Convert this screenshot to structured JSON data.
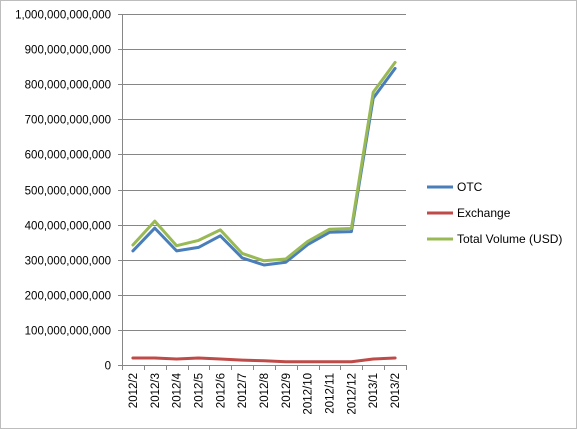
{
  "chart_data": {
    "type": "line",
    "title": "",
    "xlabel": "",
    "ylabel": "",
    "categories": [
      "2012/2",
      "2012/3",
      "2012/4",
      "2012/5",
      "2012/6",
      "2012/7",
      "2012/8",
      "2012/9",
      "2012/10",
      "2012/11",
      "2012/12",
      "2013/1",
      "2013/2"
    ],
    "ylim": [
      0,
      1000000000000
    ],
    "y_ticks": [
      0,
      100000000000,
      200000000000,
      300000000000,
      400000000000,
      500000000000,
      600000000000,
      700000000000,
      800000000000,
      900000000000,
      1000000000000
    ],
    "y_tick_labels": [
      "0",
      "100,000,000,000",
      "200,000,000,000",
      "300,000,000,000",
      "400,000,000,000",
      "500,000,000,000",
      "600,000,000,000",
      "700,000,000,000",
      "800,000,000,000",
      "900,000,000,000",
      "1,000,000,000,000"
    ],
    "grid": true,
    "legend_position": "right",
    "series": [
      {
        "name": "OTC",
        "color": "#4a7ebb",
        "values": [
          325000000000,
          390000000000,
          325000000000,
          335000000000,
          368000000000,
          305000000000,
          285000000000,
          293000000000,
          343000000000,
          378000000000,
          380000000000,
          760000000000,
          845000000000
        ]
      },
      {
        "name": "Exchange",
        "color": "#be4b48",
        "values": [
          20000000000,
          20000000000,
          17000000000,
          20000000000,
          17000000000,
          14000000000,
          12000000000,
          9000000000,
          9000000000,
          9000000000,
          9000000000,
          17000000000,
          20000000000
        ]
      },
      {
        "name": "Total Volume (USD)",
        "color": "#98b954",
        "values": [
          342000000000,
          410000000000,
          340000000000,
          355000000000,
          385000000000,
          318000000000,
          297000000000,
          302000000000,
          352000000000,
          387000000000,
          389000000000,
          777000000000,
          862000000000
        ]
      }
    ]
  }
}
